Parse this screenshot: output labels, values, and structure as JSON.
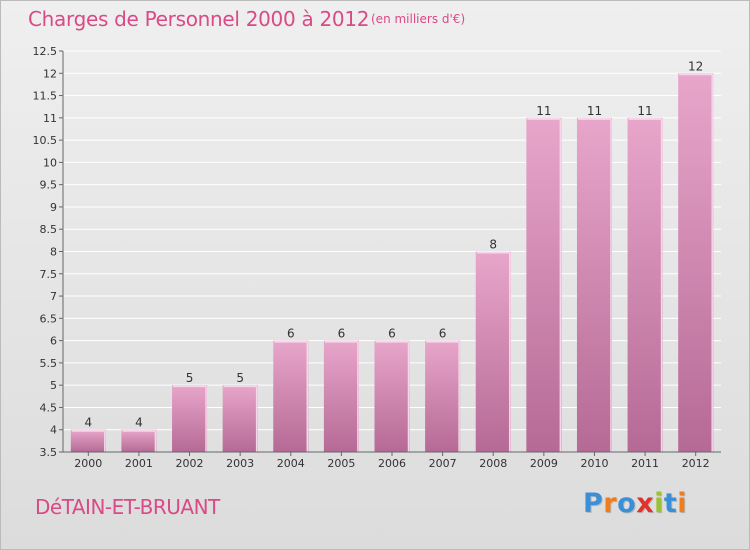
{
  "header": {
    "title": "Charges de Personnel 2000 à 2012",
    "unit": "(en milliers d'€)"
  },
  "footer": {
    "commune": "DéTAIN-ET-BRUANT",
    "brand_letters": [
      "P",
      "r",
      "o",
      "x",
      "i",
      "t",
      "i"
    ],
    "brand_colors": [
      "#3a8fd6",
      "#f07c1b",
      "#3a8fd6",
      "#e0322b",
      "#9ac234",
      "#3a8fd6",
      "#f07c1b"
    ]
  },
  "colors": {
    "bar_top": "#e8a6cb",
    "bar_bottom": "#b56a95",
    "bar_edge": "#f6d6e8",
    "accent": "#d94a86"
  },
  "chart_data": {
    "type": "bar",
    "title": "Charges de Personnel 2000 à 2012",
    "subtitle": "(en milliers d'€)",
    "categories": [
      "2000",
      "2001",
      "2002",
      "2003",
      "2004",
      "2005",
      "2006",
      "2007",
      "2008",
      "2009",
      "2010",
      "2011",
      "2012"
    ],
    "values": [
      4,
      4,
      5,
      5,
      6,
      6,
      6,
      6,
      8,
      11,
      11,
      11,
      12
    ],
    "value_labels": [
      "4",
      "4",
      "5",
      "5",
      "6",
      "6",
      "6",
      "6",
      "8",
      "11",
      "11",
      "11",
      "12"
    ],
    "ylim": [
      3.5,
      12.5
    ],
    "yticks": [
      3.5,
      4,
      4.5,
      5,
      5.5,
      6,
      6.5,
      7,
      7.5,
      8,
      8.5,
      9,
      9.5,
      10,
      10.5,
      11,
      11.5,
      12,
      12.5
    ],
    "grid": true,
    "legend": "none"
  }
}
